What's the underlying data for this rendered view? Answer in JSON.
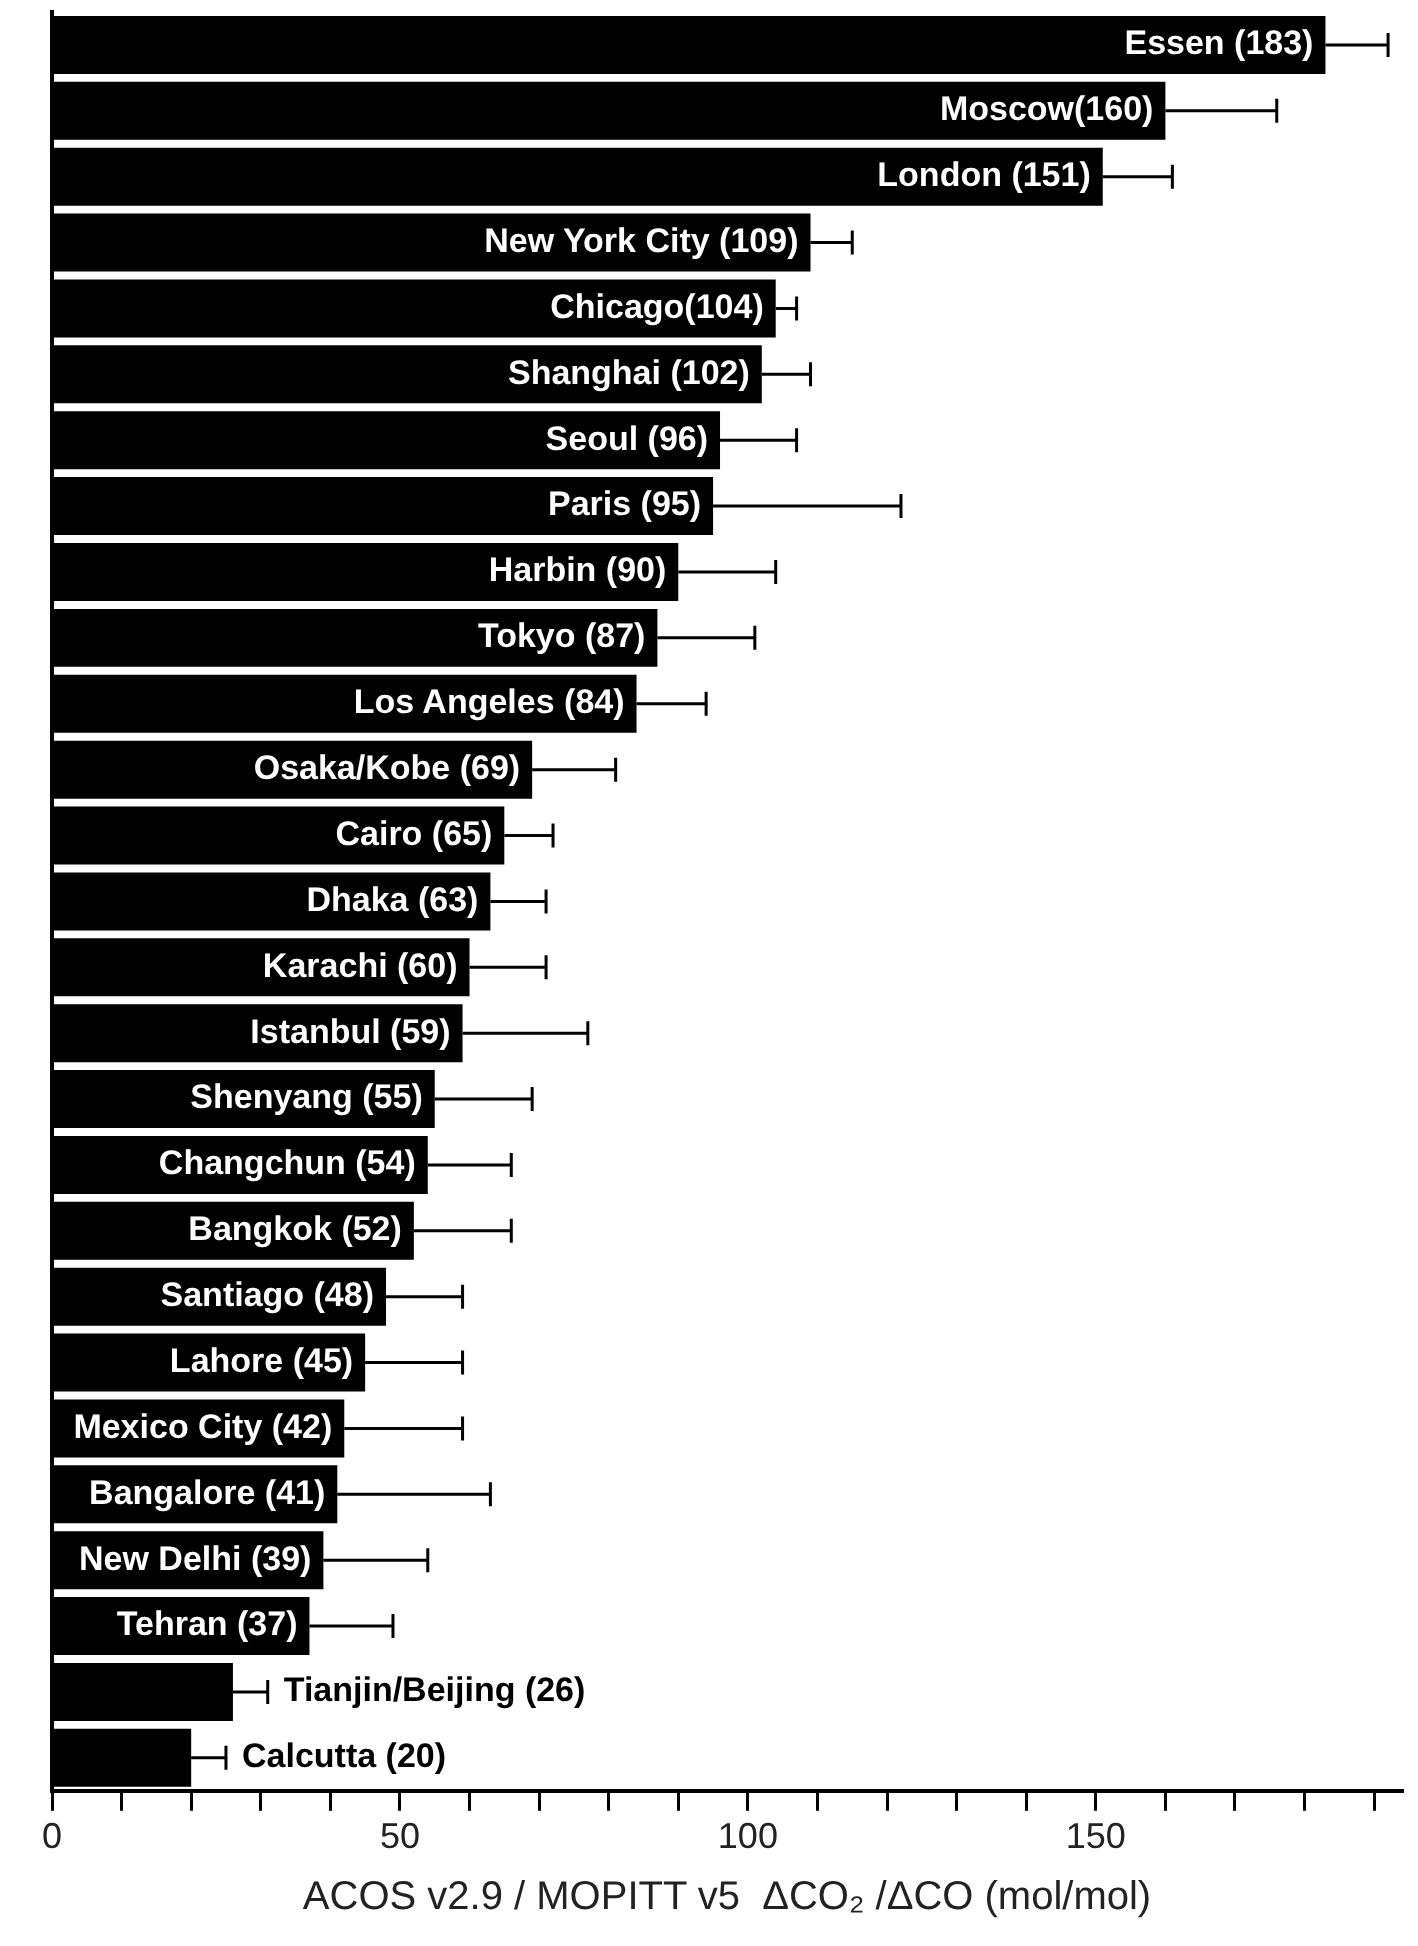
{
  "chart_data": {
    "type": "bar",
    "orientation": "horizontal",
    "categories": [
      "Essen (183)",
      "Moscow(160)",
      "London (151)",
      "New York City (109)",
      "Chicago(104)",
      "Shanghai (102)",
      "Seoul (96)",
      "Paris (95)",
      "Harbin (90)",
      "Tokyo (87)",
      "Los Angeles (84)",
      "Osaka/Kobe (69)",
      "Cairo (65)",
      "Dhaka (63)",
      "Karachi (60)",
      "Istanbul (59)",
      "Shenyang (55)",
      "Changchun (54)",
      "Bangkok (52)",
      "Santiago (48)",
      "Lahore (45)",
      "Mexico City (42)",
      "Bangalore (41)",
      "New Delhi (39)",
      "Tehran (37)",
      "Tianjin/Beijing (26)",
      "Calcutta (20)"
    ],
    "values": [
      183,
      160,
      151,
      109,
      104,
      102,
      96,
      95,
      90,
      87,
      84,
      69,
      65,
      63,
      60,
      59,
      55,
      54,
      52,
      48,
      45,
      42,
      41,
      39,
      37,
      26,
      20
    ],
    "errors": [
      [
        183,
        192
      ],
      [
        160,
        176
      ],
      [
        151,
        161
      ],
      [
        109,
        115
      ],
      [
        104,
        107
      ],
      [
        102,
        109
      ],
      [
        96,
        107
      ],
      [
        95,
        122
      ],
      [
        90,
        104
      ],
      [
        87,
        101
      ],
      [
        84,
        94
      ],
      [
        69,
        81
      ],
      [
        65,
        72
      ],
      [
        63,
        71
      ],
      [
        60,
        71
      ],
      [
        59,
        77
      ],
      [
        55,
        69
      ],
      [
        54,
        66
      ],
      [
        52,
        66
      ],
      [
        48,
        59
      ],
      [
        45,
        59
      ],
      [
        42,
        59
      ],
      [
        41,
        63
      ],
      [
        39,
        54
      ],
      [
        37,
        49
      ],
      [
        26,
        31
      ],
      [
        20,
        25
      ]
    ],
    "color": "#000000",
    "xlabel": "ACOS v2.9 / MOPITT v5  ΔCO₂ /ΔCO (mol/mol)",
    "xlim": [
      0,
      194
    ],
    "xticks": [
      0,
      {
        "value": 10,
        "label": null
      },
      {
        "value": 20,
        "label": null
      },
      {
        "value": 30,
        "label": null
      },
      {
        "value": 40,
        "label": null
      },
      50,
      {
        "value": 60,
        "label": null
      },
      {
        "value": 70,
        "label": null
      },
      {
        "value": 80,
        "label": null
      },
      {
        "value": 90,
        "label": null
      },
      100,
      {
        "value": 110,
        "label": null
      },
      {
        "value": 120,
        "label": null
      },
      {
        "value": 130,
        "label": null
      },
      {
        "value": 140,
        "label": null
      },
      150,
      {
        "value": 160,
        "label": null
      },
      {
        "value": 170,
        "label": null
      },
      {
        "value": 180,
        "label": null
      },
      {
        "value": 190,
        "label": null
      }
    ],
    "tick_labels": "x",
    "grid": false,
    "legend": false
  }
}
